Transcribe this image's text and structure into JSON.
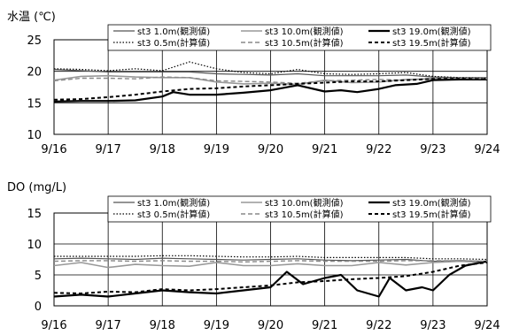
{
  "chart_data": [
    {
      "type": "line",
      "ylabel": "水温 (℃)",
      "ylim": [
        10,
        25
      ],
      "yticks": [
        10,
        15,
        20,
        25
      ],
      "xlim": [
        0,
        8
      ],
      "xticks": [
        "9/16",
        "9/17",
        "9/18",
        "9/19",
        "9/20",
        "9/21",
        "9/22",
        "9/23",
        "9/24"
      ],
      "grid": "horizontal",
      "legend": "top-right",
      "series": [
        {
          "name": "st3 1.0m(観測値)",
          "color": "#555555",
          "dash": "solid",
          "width": 1.2,
          "x": [
            0,
            0.5,
            1,
            1.5,
            2,
            2.5,
            3,
            3.5,
            4,
            4.5,
            5,
            5.5,
            6,
            6.5,
            7,
            7.5,
            8
          ],
          "y": [
            20.3,
            20.1,
            19.9,
            19.9,
            19.9,
            19.9,
            19.6,
            19.5,
            19.4,
            19.6,
            19.3,
            19.3,
            19.3,
            19.4,
            19.1,
            19.0,
            19.0
          ]
        },
        {
          "name": "st3 10.0m(観測値)",
          "color": "#999999",
          "dash": "solid",
          "width": 1.6,
          "x": [
            0,
            0.5,
            1,
            1.5,
            2,
            2.5,
            3,
            3.5,
            4,
            4.5,
            5,
            5.5,
            6,
            6.5,
            7,
            7.5,
            8
          ],
          "y": [
            18.6,
            19.2,
            19.3,
            19.1,
            19.0,
            19.0,
            18.3,
            18.0,
            18.1,
            17.9,
            18.6,
            18.2,
            18.3,
            18.7,
            18.8,
            18.8,
            18.8
          ]
        },
        {
          "name": "st3 19.0m(観測値)",
          "color": "#000000",
          "dash": "solid",
          "width": 2.2,
          "x": [
            0,
            0.5,
            1,
            1.5,
            2,
            2.2,
            2.5,
            3,
            3.5,
            4,
            4.5,
            5,
            5.3,
            5.6,
            6,
            6.3,
            6.7,
            7,
            7.5,
            8
          ],
          "y": [
            15.2,
            15.3,
            15.3,
            15.4,
            16.0,
            16.7,
            16.3,
            16.3,
            16.6,
            17.0,
            17.8,
            16.8,
            17.0,
            16.7,
            17.2,
            17.8,
            18.0,
            18.6,
            18.7,
            18.7
          ]
        },
        {
          "name": "st3 0.5m(計算値)",
          "color": "#000000",
          "dash": "1.5,2",
          "width": 1.2,
          "x": [
            0,
            0.5,
            1,
            1.5,
            2,
            2.5,
            3,
            3.5,
            4,
            4.5,
            5,
            5.5,
            6,
            6.5,
            7,
            7.5,
            8
          ],
          "y": [
            20.4,
            20.3,
            20.1,
            20.4,
            20.1,
            21.5,
            20.4,
            19.8,
            19.6,
            20.3,
            19.6,
            19.5,
            19.6,
            19.8,
            19.2,
            19.0,
            18.9
          ]
        },
        {
          "name": "st3 10.5m(計算値)",
          "color": "#888888",
          "dash": "5,3",
          "width": 1.4,
          "x": [
            0,
            0.5,
            1,
            1.5,
            2,
            2.5,
            3,
            3.5,
            4,
            4.5,
            5,
            5.5,
            6,
            6.5,
            7,
            7.5,
            8
          ],
          "y": [
            18.5,
            18.9,
            18.9,
            18.8,
            19.1,
            19.0,
            18.5,
            18.4,
            18.3,
            18.1,
            18.5,
            18.6,
            18.7,
            18.6,
            18.9,
            18.9,
            18.8
          ]
        },
        {
          "name": "st3 19.5m(計算値)",
          "color": "#000000",
          "dash": "4,3",
          "width": 2.0,
          "x": [
            0,
            0.5,
            1,
            1.5,
            2,
            2.5,
            3,
            3.5,
            4,
            4.5,
            5,
            5.5,
            6,
            6.5,
            7,
            7.5,
            8
          ],
          "y": [
            15.5,
            15.6,
            15.9,
            16.3,
            16.8,
            17.2,
            17.3,
            17.6,
            17.8,
            18.0,
            18.2,
            18.4,
            18.4,
            18.6,
            18.8,
            18.8,
            18.7
          ]
        }
      ]
    },
    {
      "type": "line",
      "ylabel": "DO (mg/L)",
      "ylim": [
        0,
        15
      ],
      "yticks": [
        0,
        5,
        10,
        15
      ],
      "xlim": [
        0,
        8
      ],
      "xticks": [
        "9/16",
        "9/17",
        "9/18",
        "9/19",
        "9/20",
        "9/21",
        "9/22",
        "9/23",
        "9/24"
      ],
      "grid": "horizontal",
      "legend": "top-right",
      "series": [
        {
          "name": "st3 1.0m(観測値)",
          "color": "#555555",
          "dash": "solid",
          "width": 1.2,
          "x": [
            0,
            0.5,
            1,
            1.5,
            2,
            2.5,
            3,
            3.5,
            4,
            4.5,
            5,
            5.5,
            6,
            6.5,
            7,
            7.5,
            8
          ],
          "y": [
            7.6,
            7.7,
            7.6,
            7.5,
            7.7,
            7.6,
            7.5,
            7.4,
            7.5,
            7.6,
            7.4,
            7.3,
            7.4,
            7.5,
            7.2,
            7.3,
            7.2
          ]
        },
        {
          "name": "st3 10.0m(観測値)",
          "color": "#999999",
          "dash": "solid",
          "width": 1.6,
          "x": [
            0,
            0.5,
            1,
            1.5,
            2,
            2.5,
            3,
            3.5,
            4,
            4.5,
            5,
            5.5,
            6,
            6.5,
            7,
            7.5,
            8
          ],
          "y": [
            6.5,
            7.0,
            6.2,
            6.7,
            6.5,
            6.4,
            7.0,
            6.5,
            6.5,
            6.8,
            6.5,
            6.5,
            7.0,
            6.6,
            7.0,
            7.2,
            7.0
          ]
        },
        {
          "name": "st3 19.0m(観測値)",
          "color": "#000000",
          "dash": "solid",
          "width": 2.2,
          "x": [
            0,
            0.5,
            1,
            1.5,
            2,
            2.5,
            3,
            3.5,
            4,
            4.3,
            4.6,
            5,
            5.3,
            5.6,
            6,
            6.2,
            6.5,
            6.8,
            7,
            7.3,
            7.6,
            8
          ],
          "y": [
            1.5,
            1.8,
            1.5,
            2.0,
            2.5,
            2.2,
            2.0,
            2.5,
            3.0,
            5.5,
            3.5,
            4.5,
            5.0,
            2.5,
            1.5,
            4.5,
            2.5,
            3.0,
            2.5,
            5.0,
            6.5,
            7.2
          ]
        },
        {
          "name": "st3 0.5m(計算値)",
          "color": "#000000",
          "dash": "1.5,2",
          "width": 1.2,
          "x": [
            0,
            0.5,
            1,
            1.5,
            2,
            2.5,
            3,
            3.5,
            4,
            4.5,
            5,
            5.5,
            6,
            6.5,
            7,
            7.5,
            8
          ],
          "y": [
            8.0,
            8.0,
            8.0,
            8.0,
            8.1,
            8.1,
            8.0,
            7.9,
            7.9,
            8.0,
            7.8,
            7.8,
            7.8,
            7.8,
            7.6,
            7.6,
            7.5
          ]
        },
        {
          "name": "st3 10.5m(計算値)",
          "color": "#888888",
          "dash": "5,3",
          "width": 1.4,
          "x": [
            0,
            0.5,
            1,
            1.5,
            2,
            2.5,
            3,
            3.5,
            4,
            4.5,
            5,
            5.5,
            6,
            6.5,
            7,
            7.5,
            8
          ],
          "y": [
            7.2,
            7.3,
            7.3,
            7.2,
            7.3,
            7.2,
            7.2,
            7.1,
            7.2,
            7.3,
            7.2,
            7.2,
            7.2,
            7.3,
            7.3,
            7.3,
            7.2
          ]
        },
        {
          "name": "st3 19.5m(計算値)",
          "color": "#000000",
          "dash": "4,3",
          "width": 2.0,
          "x": [
            0,
            0.5,
            1,
            1.5,
            2,
            2.5,
            3,
            3.5,
            4,
            4.5,
            5,
            5.5,
            6,
            6.5,
            7,
            7.5,
            8
          ],
          "y": [
            2.1,
            2.0,
            2.3,
            2.2,
            2.7,
            2.5,
            2.7,
            3.0,
            3.3,
            3.8,
            4.0,
            4.3,
            4.5,
            4.8,
            5.5,
            6.5,
            7.0
          ]
        }
      ]
    }
  ]
}
